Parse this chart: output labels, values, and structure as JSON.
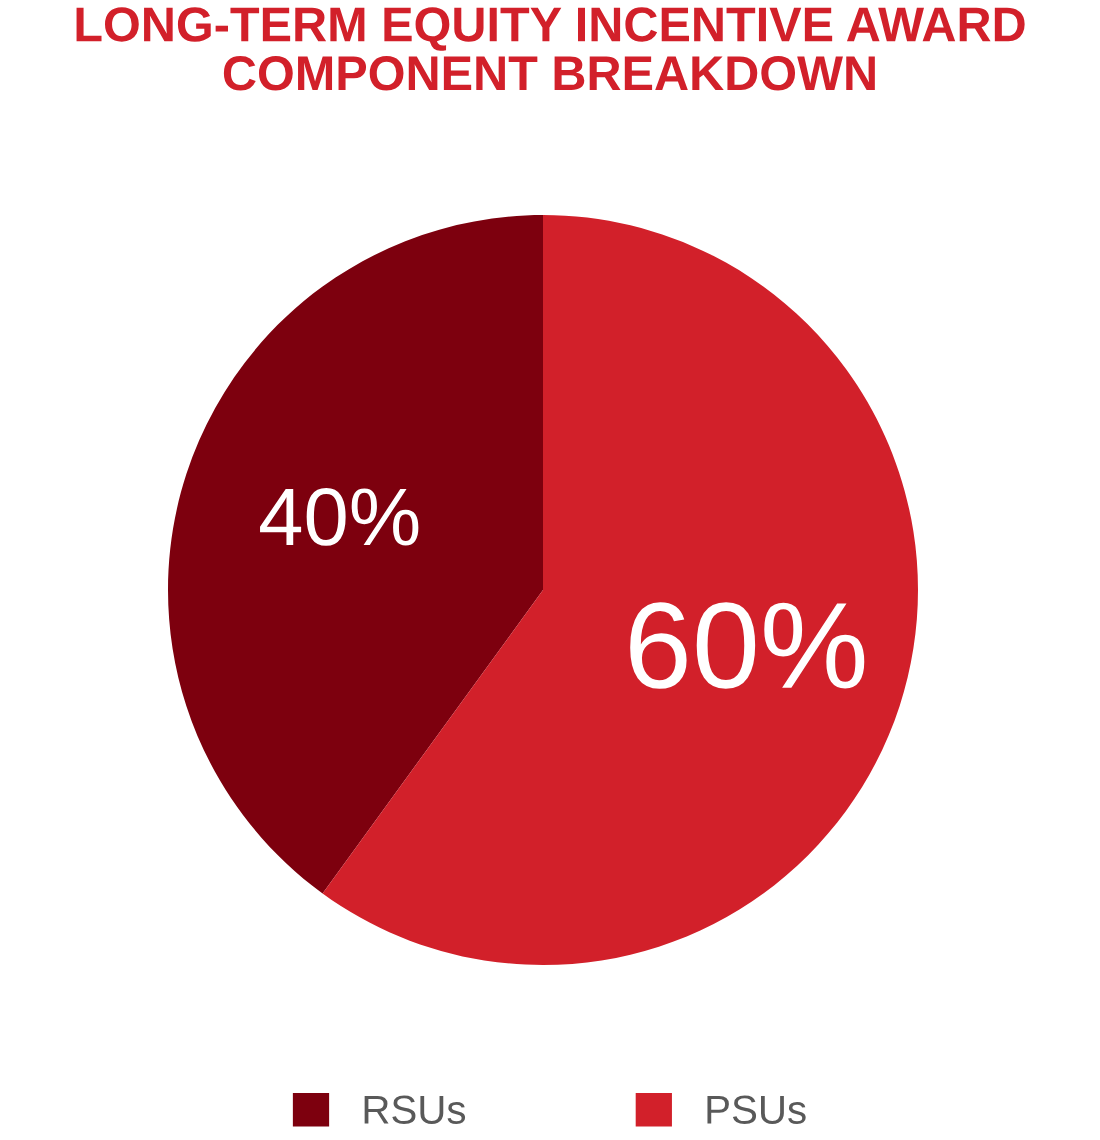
{
  "chart_data": {
    "type": "pie",
    "title": "LONG-TERM EQUITY INCENTIVE AWARD\nCOMPONENT BREAKDOWN",
    "categories": [
      "RSUs",
      "PSUs"
    ],
    "values": [
      40,
      60
    ],
    "colors": [
      "#7d000e",
      "#d2202a"
    ],
    "value_labels": [
      "40%",
      "60%"
    ],
    "legend": "bottom"
  }
}
